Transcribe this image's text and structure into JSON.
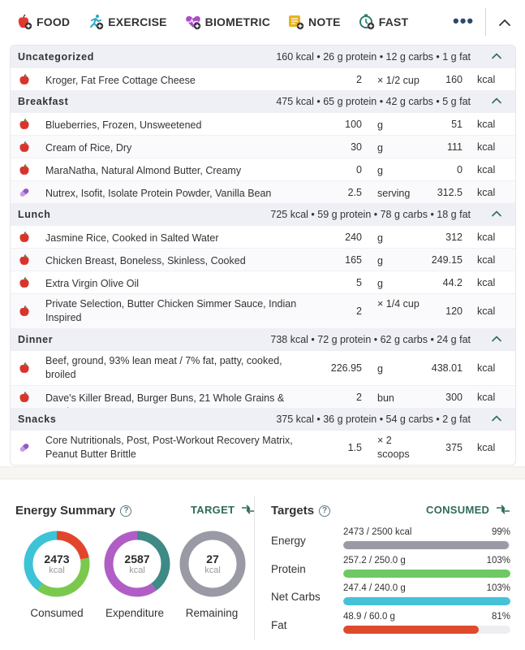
{
  "toolbar": {
    "items": [
      {
        "label": "FOOD",
        "icon": "food-add-icon",
        "color": "#e03a2f"
      },
      {
        "label": "EXERCISE",
        "icon": "exercise-add-icon",
        "color": "#2fa8c4"
      },
      {
        "label": "BIOMETRIC",
        "icon": "biometric-add-icon",
        "color": "#a94cc6"
      },
      {
        "label": "NOTE",
        "icon": "note-add-icon",
        "color": "#e8b320"
      },
      {
        "label": "FAST",
        "icon": "fast-add-icon",
        "color": "#2f7d6d"
      }
    ],
    "more_icon": "more-dots-icon",
    "collapse_icon": "chevron-up-icon"
  },
  "meals": [
    {
      "name": "Uncategorized",
      "summary": "160 kcal • 26 g protein • 12 g carbs • 1 g fat",
      "items": [
        {
          "name": "Kroger, Fat Free Cottage Cheese",
          "qty": "2",
          "unit": "× 1/2 cup",
          "kcal": "160",
          "kcal_label": "kcal",
          "icon": "apple-icon"
        }
      ]
    },
    {
      "name": "Breakfast",
      "summary": "475 kcal • 65 g protein • 42 g carbs • 5 g fat",
      "items": [
        {
          "name": "Blueberries, Frozen, Unsweetened",
          "qty": "100",
          "unit": "g",
          "kcal": "51",
          "kcal_label": "kcal",
          "icon": "apple-icon"
        },
        {
          "name": "Cream of Rice, Dry",
          "qty": "30",
          "unit": "g",
          "kcal": "111",
          "kcal_label": "kcal",
          "icon": "apple-icon"
        },
        {
          "name": "MaraNatha, Natural Almond Butter, Creamy",
          "qty": "0",
          "unit": "g",
          "kcal": "0",
          "kcal_label": "kcal",
          "icon": "apple-icon"
        },
        {
          "name": "Nutrex, Isofit, Isolate Protein Powder, Vanilla Bean",
          "qty": "2.5",
          "unit": "serving",
          "kcal": "312.5",
          "kcal_label": "kcal",
          "icon": "supplement-icon"
        }
      ]
    },
    {
      "name": "Lunch",
      "summary": "725 kcal • 59 g protein • 78 g carbs • 18 g fat",
      "items": [
        {
          "name": "Jasmine Rice, Cooked in Salted Water",
          "qty": "240",
          "unit": "g",
          "kcal": "312",
          "kcal_label": "kcal",
          "icon": "apple-icon"
        },
        {
          "name": "Chicken Breast, Boneless, Skinless, Cooked",
          "qty": "165",
          "unit": "g",
          "kcal": "249.15",
          "kcal_label": "kcal",
          "icon": "apple-icon"
        },
        {
          "name": "Extra Virgin Olive Oil",
          "qty": "5",
          "unit": "g",
          "kcal": "44.2",
          "kcal_label": "kcal",
          "icon": "apple-icon"
        },
        {
          "name": "Private Selection, Butter Chicken Simmer Sauce, Indian Inspired",
          "qty": "2",
          "unit": "× 1/4 cup",
          "kcal": "120",
          "kcal_label": "kcal",
          "icon": "apple-icon"
        }
      ]
    },
    {
      "name": "Dinner",
      "summary": "738 kcal • 72 g protein • 62 g carbs • 24 g fat",
      "items": [
        {
          "name": "Beef, ground, 93% lean meat / 7% fat, patty, cooked, broiled",
          "qty": "226.95",
          "unit": "g",
          "kcal": "438.01",
          "kcal_label": "kcal",
          "icon": "apple-icon"
        },
        {
          "name": "Dave's Killer Bread, Burger Buns, 21 Whole Grains & Seeds",
          "qty": "2",
          "unit": "bun",
          "kcal": "300",
          "kcal_label": "kcal",
          "icon": "apple-icon"
        }
      ]
    },
    {
      "name": "Snacks",
      "summary": "375 kcal • 36 g protein • 54 g carbs • 2 g fat",
      "items": [
        {
          "name": "Core Nutritionals, Post, Post-Workout Recovery Matrix, Peanut Butter Brittle",
          "qty": "1.5",
          "unit": "× 2 scoops",
          "kcal": "375",
          "kcal_label": "kcal",
          "icon": "supplement-icon"
        }
      ]
    }
  ],
  "energy_summary": {
    "title": "Energy Summary",
    "help": "?",
    "target_label": "TARGET",
    "donuts": [
      {
        "value": "2473",
        "unit": "kcal",
        "label": "Consumed",
        "colors": [
          "#e3452c",
          "#7ac94e",
          "#3cc3d6"
        ],
        "fractions": [
          0.22,
          0.38,
          0.4
        ]
      },
      {
        "value": "2587",
        "unit": "kcal",
        "label": "Expenditure",
        "colors": [
          "#3e8a85",
          "#b05ec6"
        ],
        "fractions": [
          0.4,
          0.6
        ]
      },
      {
        "value": "27",
        "unit": "kcal",
        "label": "Remaining",
        "colors": [
          "#9a9aa5"
        ],
        "fractions": [
          1.0
        ]
      }
    ]
  },
  "targets": {
    "title": "Targets",
    "help": "?",
    "consumed_label": "CONSUMED",
    "rows": [
      {
        "name": "Energy",
        "value": "2473 / 2500 kcal",
        "pct": "99%",
        "fill": 0.99,
        "color": "#9a9aa5"
      },
      {
        "name": "Protein",
        "value": "257.2 / 250.0 g",
        "pct": "103%",
        "fill": 1.0,
        "color": "#6ec864"
      },
      {
        "name": "Net Carbs",
        "value": "247.4 / 240.0 g",
        "pct": "103%",
        "fill": 1.0,
        "color": "#46c2d8"
      },
      {
        "name": "Fat",
        "value": "48.9 / 60.0 g",
        "pct": "81%",
        "fill": 0.81,
        "color": "#de4a2c"
      }
    ]
  }
}
